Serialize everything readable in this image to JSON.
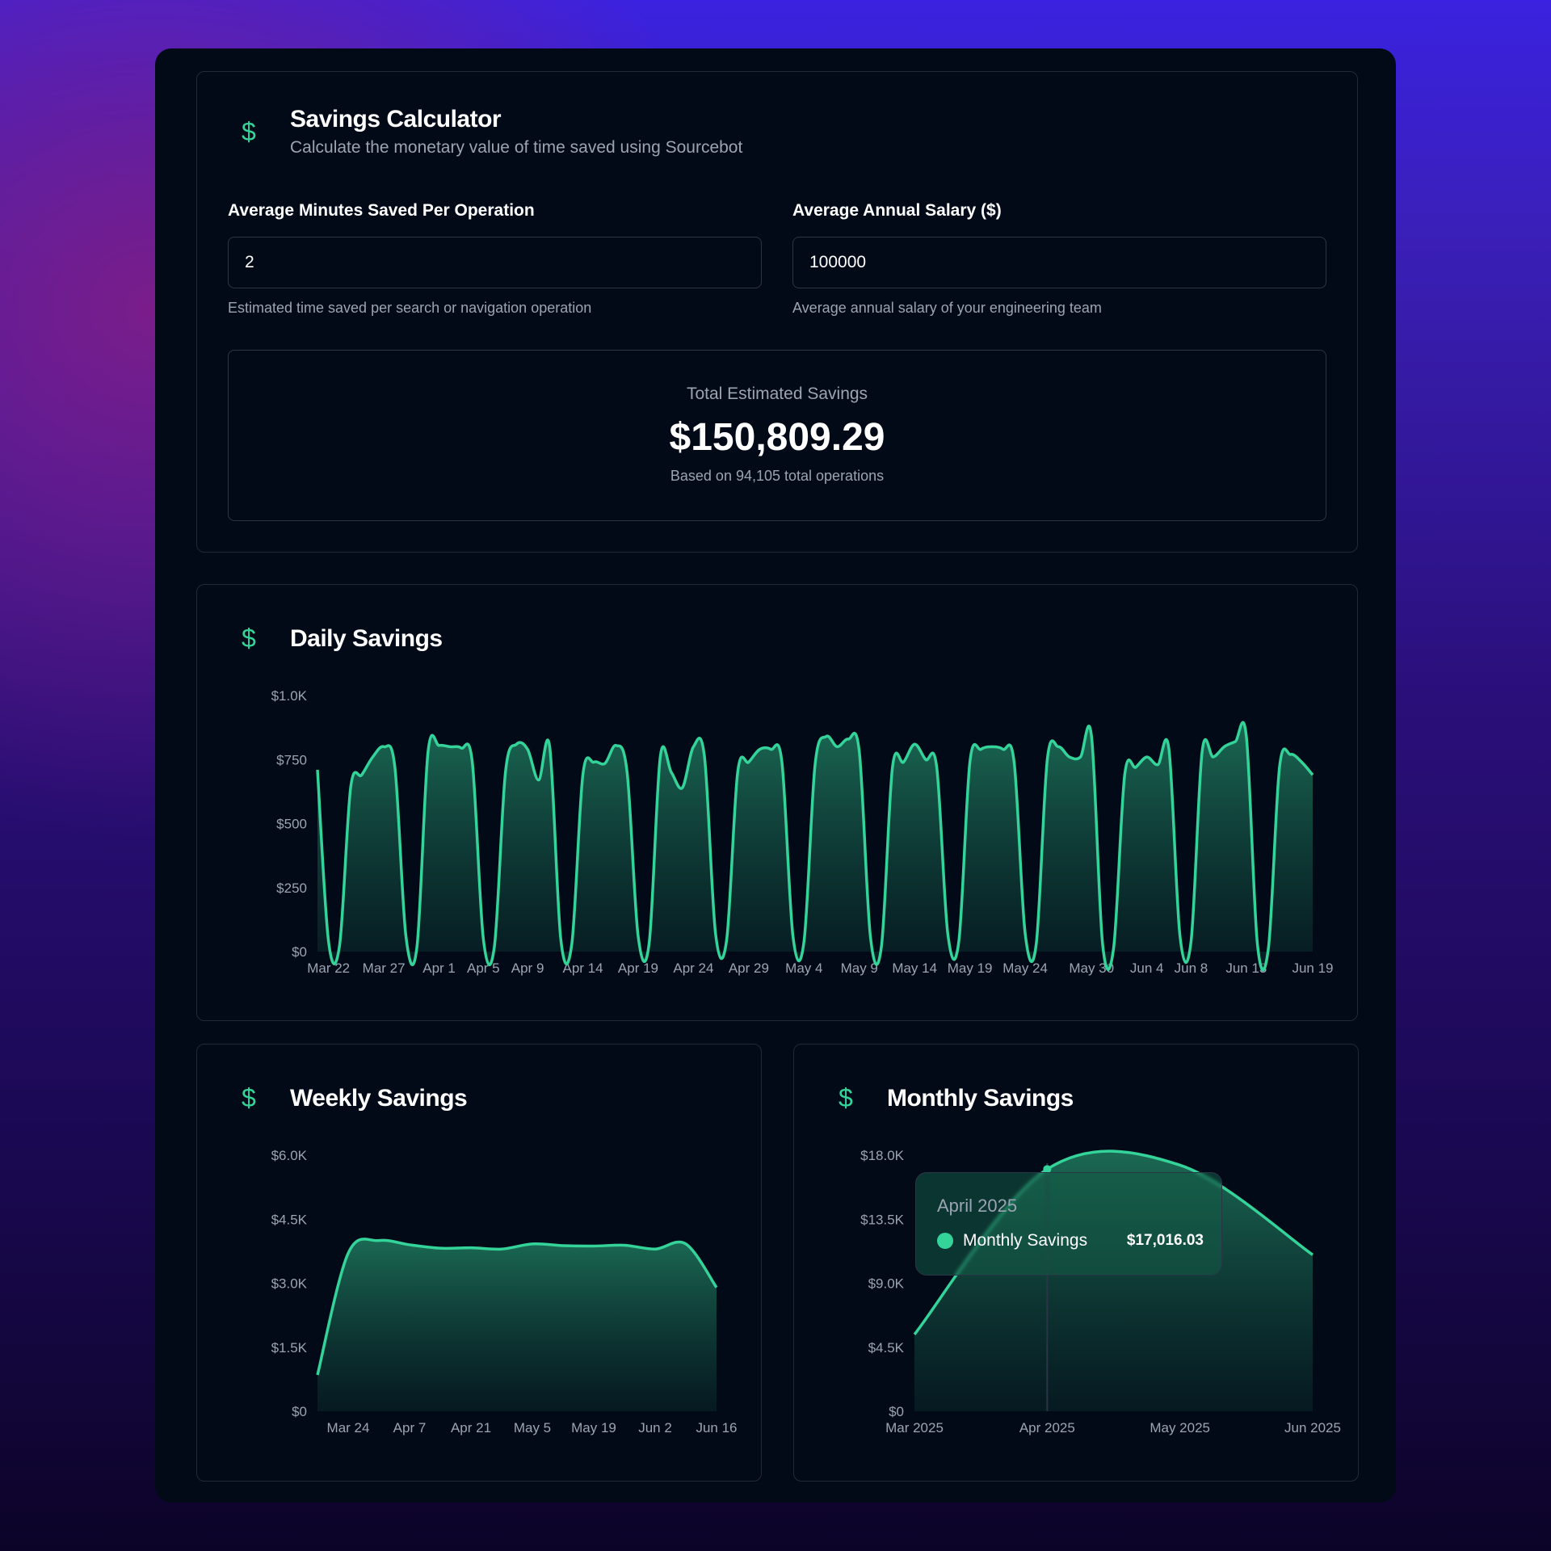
{
  "calculator": {
    "title": "Savings Calculator",
    "subtitle": "Calculate the monetary value of time saved using Sourcebot",
    "minutes_label": "Average Minutes Saved Per Operation",
    "minutes_value": "2",
    "minutes_hint": "Estimated time saved per search or navigation operation",
    "salary_label": "Average Annual Salary ($)",
    "salary_value": "100000",
    "salary_hint": "Average annual salary of your engineering team",
    "total_label": "Total Estimated Savings",
    "total_value": "$150,809.29",
    "total_note": "Based on 94,105 total operations"
  },
  "colors": {
    "accent": "#34d399"
  },
  "chart_data": [
    {
      "type": "area",
      "title": "Daily Savings",
      "ylim": [
        0,
        1000
      ],
      "yticks": [
        "$0",
        "$250",
        "$500",
        "$750",
        "$1.0K"
      ],
      "ytick_values": [
        0,
        250,
        500,
        750,
        1000
      ],
      "x_labels": [
        {
          "text": "Mar 22",
          "i": 1
        },
        {
          "text": "Mar 27",
          "i": 6
        },
        {
          "text": "Apr 1",
          "i": 11
        },
        {
          "text": "Apr 5",
          "i": 15
        },
        {
          "text": "Apr 9",
          "i": 19
        },
        {
          "text": "Apr 14",
          "i": 24
        },
        {
          "text": "Apr 19",
          "i": 29
        },
        {
          "text": "Apr 24",
          "i": 34
        },
        {
          "text": "Apr 29",
          "i": 39
        },
        {
          "text": "May 4",
          "i": 44
        },
        {
          "text": "May 9",
          "i": 49
        },
        {
          "text": "May 14",
          "i": 54
        },
        {
          "text": "May 19",
          "i": 59
        },
        {
          "text": "May 24",
          "i": 64
        },
        {
          "text": "May 30",
          "i": 70
        },
        {
          "text": "Jun 4",
          "i": 75
        },
        {
          "text": "Jun 8",
          "i": 79
        },
        {
          "text": "Jun 13",
          "i": 84
        },
        {
          "text": "Jun 19",
          "i": 90
        }
      ],
      "values": [
        710,
        40,
        25,
        640,
        690,
        760,
        800,
        720,
        60,
        20,
        780,
        805,
        800,
        795,
        740,
        50,
        20,
        700,
        810,
        790,
        670,
        800,
        50,
        30,
        690,
        740,
        735,
        805,
        700,
        60,
        35,
        760,
        700,
        640,
        800,
        760,
        70,
        45,
        700,
        740,
        790,
        790,
        740,
        60,
        40,
        730,
        840,
        800,
        830,
        780,
        60,
        20,
        720,
        740,
        810,
        750,
        720,
        70,
        40,
        740,
        790,
        800,
        790,
        740,
        70,
        30,
        750,
        800,
        760,
        760,
        840,
        30,
        15,
        690,
        720,
        760,
        730,
        790,
        60,
        40,
        780,
        760,
        800,
        820,
        840,
        30,
        15,
        720,
        770,
        740,
        690
      ]
    },
    {
      "type": "area",
      "title": "Weekly Savings",
      "ylim": [
        0,
        6000
      ],
      "yticks": [
        "$0",
        "$1.5K",
        "$3.0K",
        "$4.5K",
        "$6.0K"
      ],
      "ytick_values": [
        0,
        1500,
        3000,
        4500,
        6000
      ],
      "x_labels": [
        {
          "text": "Mar 24",
          "i": 1
        },
        {
          "text": "Apr 7",
          "i": 3
        },
        {
          "text": "Apr 21",
          "i": 5
        },
        {
          "text": "May 5",
          "i": 7
        },
        {
          "text": "May 19",
          "i": 9
        },
        {
          "text": "Jun 2",
          "i": 11
        },
        {
          "text": "Jun 16",
          "i": 13
        }
      ],
      "values": [
        850,
        3700,
        4000,
        3900,
        3820,
        3830,
        3800,
        3920,
        3880,
        3870,
        3890,
        3800,
        3920,
        2900
      ]
    },
    {
      "type": "area",
      "title": "Monthly Savings",
      "ylim": [
        0,
        18000
      ],
      "yticks": [
        "$0",
        "$4.5K",
        "$9.0K",
        "$13.5K",
        "$18.0K"
      ],
      "ytick_values": [
        0,
        4500,
        9000,
        13500,
        18000
      ],
      "x_labels": [
        {
          "text": "Mar 2025",
          "i": 0
        },
        {
          "text": "Apr 2025",
          "i": 1
        },
        {
          "text": "May 2025",
          "i": 2
        },
        {
          "text": "Jun 2025",
          "i": 3
        }
      ],
      "values": [
        5400,
        17016.03,
        17300,
        11000
      ],
      "tooltip": {
        "title": "April 2025",
        "series": "Monthly Savings",
        "value": "$17,016.03",
        "i": 1
      }
    }
  ]
}
